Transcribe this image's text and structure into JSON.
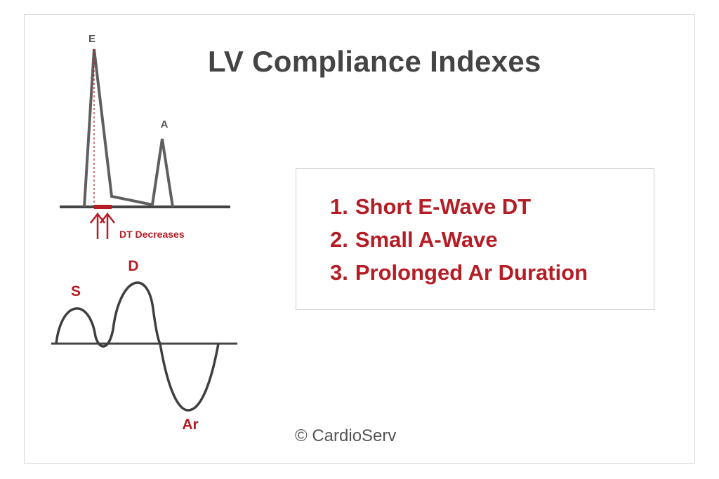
{
  "title": "LV Compliance Indexes",
  "indexes": [
    {
      "number": "1.",
      "text": "Short E-Wave DT"
    },
    {
      "number": "2.",
      "text": "Small A-Wave"
    },
    {
      "number": "3.",
      "text": "Prolonged Ar Duration"
    }
  ],
  "mitral_diagram": {
    "e_label": "E",
    "a_label": "A",
    "dt_label": "DT Decreases"
  },
  "pv_diagram": {
    "s_label": "S",
    "d_label": "D",
    "ar_label": "Ar"
  },
  "copyright": "© CardioServ",
  "colors": {
    "accent": "#b51c24",
    "wave": "#5a5a5a",
    "text": "#444444"
  }
}
